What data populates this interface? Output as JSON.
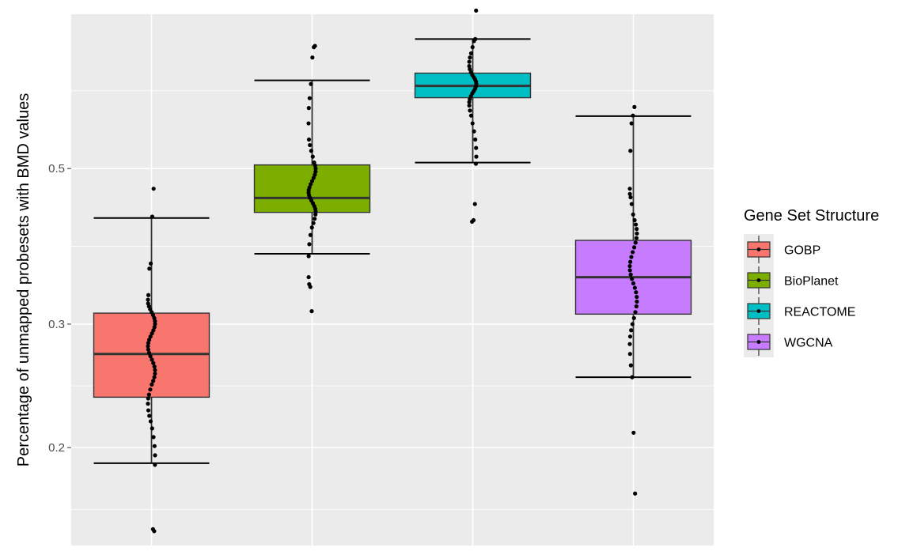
{
  "chart_data": {
    "type": "boxplot",
    "title": "",
    "xlabel": "",
    "ylabel": "Percentage of unmapped probesets with BMD values",
    "y_scale": "log",
    "ylim": [
      0.145,
      0.83
    ],
    "y_ticks": [
      0.2,
      0.3,
      0.5
    ],
    "y_tick_labels": [
      "0.2",
      "0.3",
      "0.5"
    ],
    "grid": true,
    "legend": {
      "title": "Gene Set Structure",
      "position": "right"
    },
    "categories": [
      "GOBP",
      "BioPlanet",
      "REACTOME",
      "WGCNA"
    ],
    "series": [
      {
        "name": "GOBP",
        "color": "#F8766D",
        "whisker_low": 0.19,
        "q1": 0.236,
        "median": 0.272,
        "q3": 0.311,
        "whisker_high": 0.425,
        "points": [
          0.153,
          0.152,
          0.189,
          0.195,
          0.201,
          0.207,
          0.213,
          0.218,
          0.222,
          0.226,
          0.231,
          0.235,
          0.238,
          0.242,
          0.246,
          0.249,
          0.252,
          0.255,
          0.258,
          0.261,
          0.264,
          0.267,
          0.27,
          0.273,
          0.276,
          0.279,
          0.282,
          0.285,
          0.288,
          0.291,
          0.294,
          0.297,
          0.3,
          0.303,
          0.306,
          0.309,
          0.312,
          0.315,
          0.318,
          0.321,
          0.325,
          0.33,
          0.36,
          0.366,
          0.427,
          0.468
        ]
      },
      {
        "name": "BioPlanet",
        "color": "#7CAE00",
        "whisker_low": 0.378,
        "q1": 0.433,
        "median": 0.454,
        "q3": 0.506,
        "whisker_high": 0.668,
        "points": [
          0.313,
          0.339,
          0.342,
          0.35,
          0.375,
          0.39,
          0.402,
          0.412,
          0.418,
          0.424,
          0.43,
          0.434,
          0.438,
          0.442,
          0.446,
          0.45,
          0.454,
          0.458,
          0.462,
          0.466,
          0.47,
          0.475,
          0.48,
          0.485,
          0.49,
          0.495,
          0.5,
          0.505,
          0.51,
          0.52,
          0.53,
          0.54,
          0.55,
          0.58,
          0.61,
          0.63,
          0.66,
          0.72,
          0.745,
          0.748
        ]
      },
      {
        "name": "REACTOME",
        "color": "#00BFC4",
        "whisker_low": 0.51,
        "q1": 0.631,
        "median": 0.656,
        "q3": 0.684,
        "whisker_high": 0.765,
        "points": [
          0.42,
          0.422,
          0.445,
          0.508,
          0.52,
          0.535,
          0.55,
          0.565,
          0.58,
          0.595,
          0.605,
          0.615,
          0.622,
          0.628,
          0.634,
          0.64,
          0.645,
          0.65,
          0.655,
          0.66,
          0.665,
          0.67,
          0.675,
          0.68,
          0.686,
          0.693,
          0.7,
          0.71,
          0.72,
          0.73,
          0.745,
          0.76,
          0.765,
          0.84
        ]
      },
      {
        "name": "WGCNA",
        "color": "#C77CFF",
        "whisker_low": 0.252,
        "q1": 0.31,
        "median": 0.35,
        "q3": 0.395,
        "whisker_high": 0.594,
        "points": [
          0.172,
          0.21,
          0.252,
          0.262,
          0.272,
          0.281,
          0.288,
          0.294,
          0.3,
          0.306,
          0.312,
          0.318,
          0.323,
          0.328,
          0.333,
          0.338,
          0.343,
          0.348,
          0.353,
          0.358,
          0.363,
          0.368,
          0.374,
          0.38,
          0.386,
          0.392,
          0.398,
          0.404,
          0.41,
          0.416,
          0.422,
          0.43,
          0.445,
          0.455,
          0.46,
          0.468,
          0.53,
          0.58,
          0.595,
          0.612
        ]
      }
    ]
  }
}
